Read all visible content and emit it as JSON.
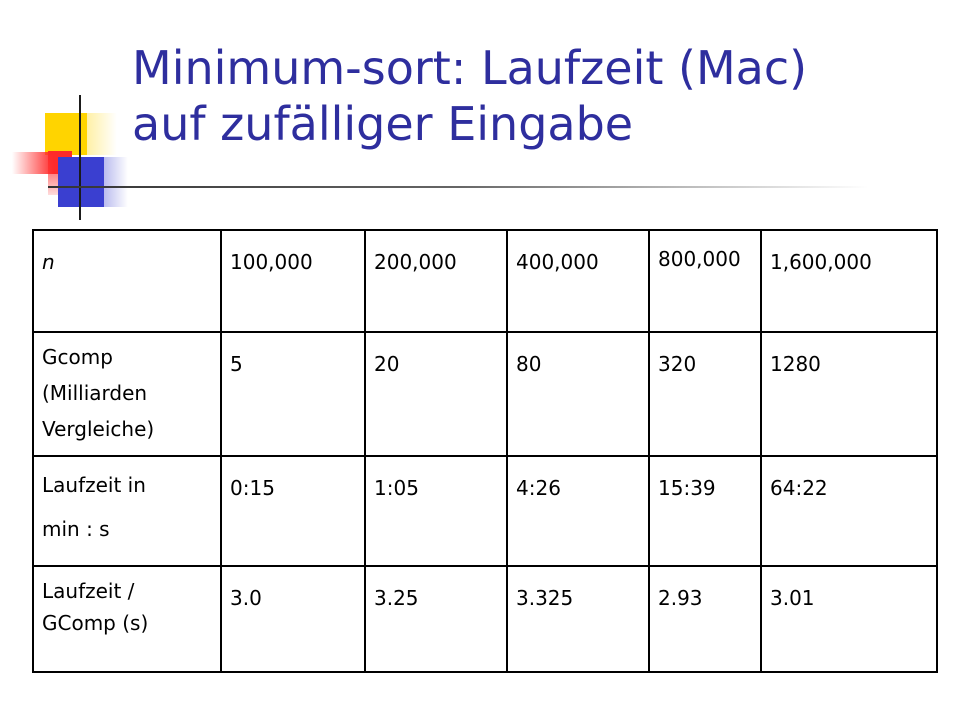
{
  "slide": {
    "title_line1": "Minimum-sort: Laufzeit (Mac)",
    "title_line2": "auf zufälliger Eingabe",
    "title_color": "#2e2e9e"
  },
  "logo": {
    "icon": "decorative-squares-logo",
    "colors": [
      "#ffd400",
      "#ff2a2a",
      "#3a3fd0"
    ]
  },
  "table": {
    "rows": [
      {
        "label": "n",
        "cells": [
          "100,000",
          "200,000",
          "400,000",
          "800,000",
          "1,600,000"
        ]
      },
      {
        "label_lines": [
          "Gcomp",
          "(Milliarden",
          "Vergleiche)"
        ],
        "cells": [
          "5",
          "20",
          "80",
          "320",
          "1280"
        ]
      },
      {
        "label_lines": [
          "Laufzeit in",
          "min : s"
        ],
        "cells": [
          "0:15",
          "1:05",
          "4:26",
          "15:39",
          "64:22"
        ]
      },
      {
        "label_lines": [
          "Laufzeit /",
          "GComp (s)"
        ],
        "cells": [
          "3.0",
          "3.25",
          "3.325",
          "2.93",
          "3.01"
        ]
      }
    ]
  }
}
